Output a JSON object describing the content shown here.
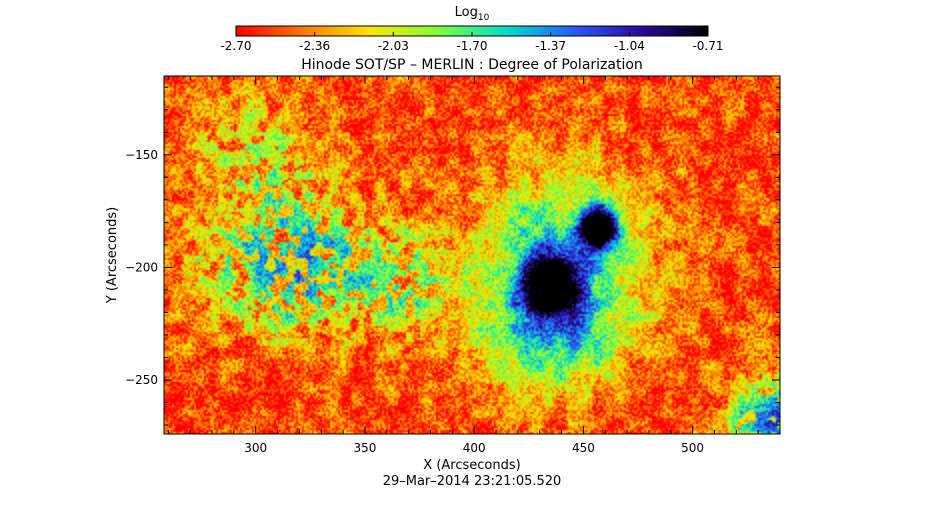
{
  "colorbar": {
    "title_base": "Log",
    "title_sub": "10",
    "ticks": [
      "-2.70",
      "-2.36",
      "-2.03",
      "-1.70",
      "-1.37",
      "-1.04",
      "-0.71"
    ],
    "range": [
      -2.7,
      -0.71
    ],
    "stops": [
      "#ff0000",
      "#ff7a00",
      "#ffe600",
      "#7dff3a",
      "#00e0c8",
      "#2a5bff",
      "#2a0aa0",
      "#000000"
    ]
  },
  "chart_data": {
    "type": "heatmap",
    "title": "Hinode SOT/SP – MERLIN : Degree of Polarization",
    "xlabel": "X (Arcseconds)",
    "ylabel": "Y (Arcseconds)",
    "xlim": [
      258,
      540
    ],
    "ylim": [
      -274,
      -115
    ],
    "xticks": [
      300,
      350,
      400,
      450,
      500
    ],
    "yticks": [
      -150,
      -200,
      -250
    ],
    "value_scale": "log10",
    "value_range": [
      -2.7,
      -0.71
    ],
    "features": [
      {
        "name": "large sunspot umbra",
        "x": 434,
        "y": -210,
        "peak_value": -0.8
      },
      {
        "name": "small sunspot umbra",
        "x": 457,
        "y": -183,
        "peak_value": -0.82
      },
      {
        "name": "active region plage",
        "x": 440,
        "y": -195,
        "peak_value": -1.6
      },
      {
        "name": "western network",
        "x": 318,
        "y": -195,
        "peak_value": -1.3
      },
      {
        "name": "south-east edge",
        "x": 530,
        "y": -262,
        "peak_value": -1.1
      }
    ],
    "date_label": "29–Mar–2014 23:21:05.520"
  }
}
